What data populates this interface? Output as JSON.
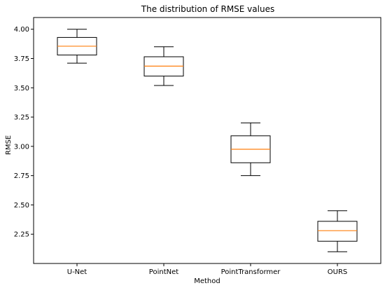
{
  "chart_data": {
    "type": "box",
    "title": "The distribution of RMSE values",
    "xlabel": "Method",
    "ylabel": "RMSE",
    "categories": [
      "U-Net",
      "PointNet",
      "PointTransformer",
      "OURS"
    ],
    "boxes": [
      {
        "whisker_low": 3.71,
        "q1": 3.78,
        "median": 3.855,
        "q3": 3.93,
        "whisker_high": 4.0
      },
      {
        "whisker_low": 3.52,
        "q1": 3.6,
        "median": 3.685,
        "q3": 3.765,
        "whisker_high": 3.85
      },
      {
        "whisker_low": 2.75,
        "q1": 2.86,
        "median": 2.975,
        "q3": 3.09,
        "whisker_high": 3.2
      },
      {
        "whisker_low": 2.1,
        "q1": 2.19,
        "median": 2.28,
        "q3": 2.36,
        "whisker_high": 2.45
      }
    ],
    "ylim": [
      2.0,
      4.1
    ],
    "yticks": [
      2.25,
      2.5,
      2.75,
      3.0,
      3.25,
      3.5,
      3.75,
      4.0
    ],
    "ytick_labels": [
      "2.25",
      "2.50",
      "2.75",
      "3.00",
      "3.25",
      "3.50",
      "3.75",
      "4.00"
    ],
    "grid": false,
    "colors": {
      "box": "#000000",
      "median": "#ff7f0e",
      "axes": "#000000"
    }
  }
}
